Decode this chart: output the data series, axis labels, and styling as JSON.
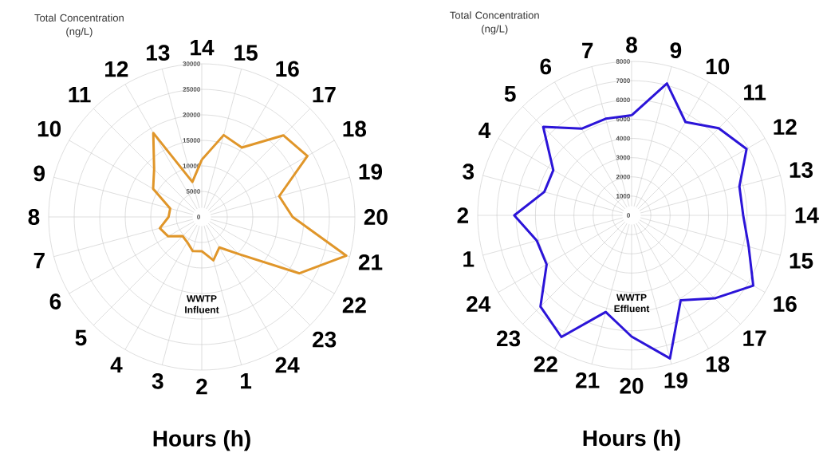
{
  "chart_data": [
    {
      "type": "radar",
      "ylabel": "Total Concentration (ng/L)",
      "xlabel": "Hours (h)",
      "annotations": [
        "WWTP Influent"
      ],
      "categories": [
        "14",
        "15",
        "16",
        "17",
        "18",
        "19",
        "20",
        "21",
        "22",
        "23",
        "24",
        "1",
        "2",
        "3",
        "4",
        "5",
        "6",
        "7",
        "8",
        "9",
        "10",
        "11",
        "12",
        "13"
      ],
      "series": [
        {
          "color": "#e0962a",
          "values": [
            11200,
            16600,
            15700,
            22600,
            23900,
            15700,
            17800,
            29300,
            22100,
            10300,
            6900,
            8800,
            6700,
            6900,
            5700,
            5300,
            7600,
            8500,
            6500,
            6400,
            11000,
            13200,
            19000,
            7100
          ]
        }
      ],
      "ylim": [
        0,
        30000
      ],
      "yticks": [
        0,
        5000,
        10000,
        15000,
        20000,
        25000,
        30000
      ],
      "grid": true
    },
    {
      "type": "radar",
      "ylabel": "Total Concentration (ng/L)",
      "xlabel": "Hours (h)",
      "annotations": [
        "WWTP Effluent"
      ],
      "categories": [
        "8",
        "9",
        "10",
        "11",
        "12",
        "13",
        "14",
        "15",
        "16",
        "17",
        "18",
        "19",
        "20",
        "21",
        "22",
        "23",
        "24",
        "1",
        "2",
        "3",
        "4",
        "5",
        "6",
        "7"
      ],
      "series": [
        {
          "color": "#2b14d8",
          "values": [
            5200,
            7100,
            5600,
            6400,
            6900,
            5800,
            5800,
            6300,
            7300,
            6100,
            5100,
            7700,
            6300,
            5200,
            7300,
            6700,
            5100,
            5100,
            6100,
            4700,
            4700,
            6500,
            5200,
            5200
          ]
        }
      ],
      "ylim": [
        0,
        8000
      ],
      "yticks": [
        0,
        1000,
        2000,
        3000,
        4000,
        5000,
        6000,
        7000,
        8000
      ],
      "grid": true
    }
  ]
}
